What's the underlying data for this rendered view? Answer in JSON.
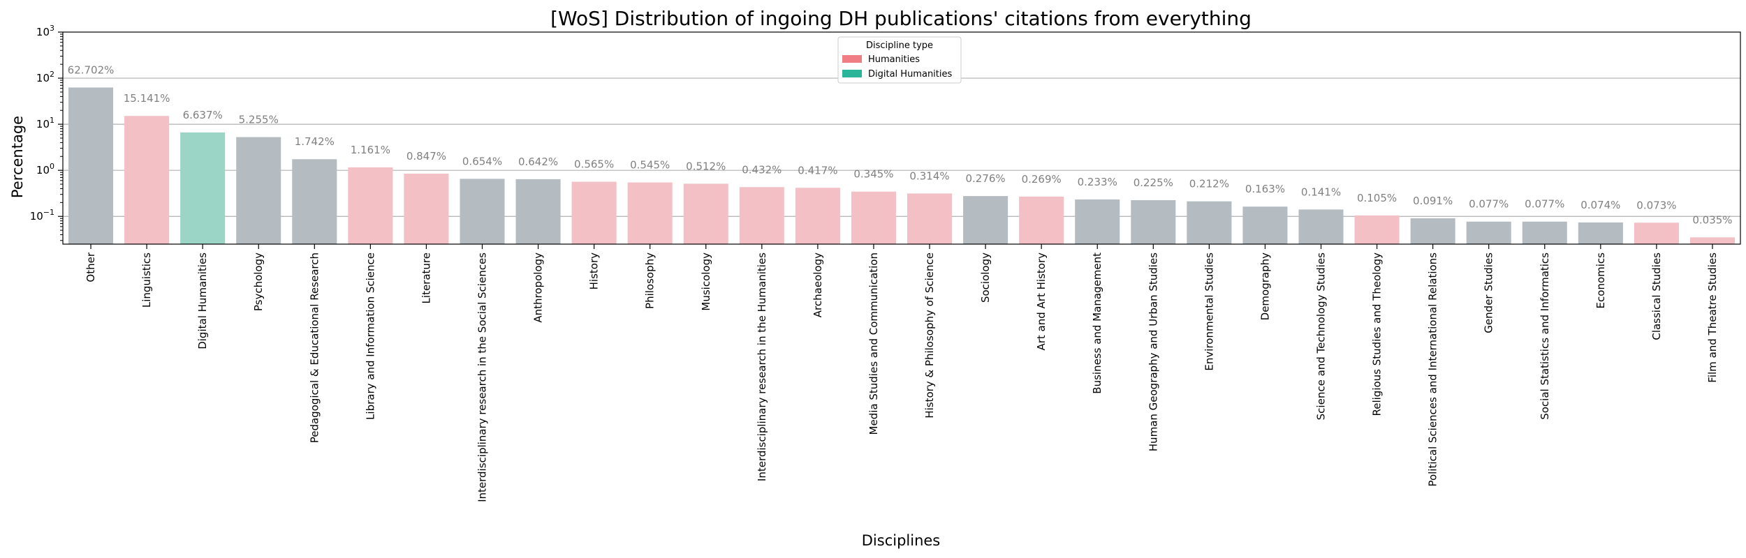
{
  "chart_data": {
    "type": "bar",
    "title": "[WoS] Distribution of ingoing DH publications' citations from everything",
    "xlabel": "Disciplines",
    "ylabel": "Percentage",
    "yscale": "log",
    "ylim": [
      0.025,
      1000
    ],
    "yticks": [
      {
        "value": 0.1,
        "base": "10",
        "exp": "−1"
      },
      {
        "value": 1,
        "base": "10",
        "exp": "0"
      },
      {
        "value": 10,
        "base": "10",
        "exp": "1"
      },
      {
        "value": 100,
        "base": "10",
        "exp": "2"
      },
      {
        "value": 1000,
        "base": "10",
        "exp": "3"
      }
    ],
    "grid": "horizontal",
    "legend": {
      "title": "Discipline type",
      "placement": "top-center",
      "entries": [
        {
          "label": "Humanities",
          "color": "#f07c84"
        },
        {
          "label": "Digital Humanities",
          "color": "#2ab59a"
        }
      ]
    },
    "colors": {
      "humanities": "#f2c0c5",
      "digital_humanities": "#9ad5c5",
      "other": "#b5bcc1"
    },
    "categories": [
      "Other",
      "Linguistics",
      "Digital Humanities",
      "Psychology",
      "Pedagogical & Educational Research",
      "Library and Information Science",
      "Literature",
      "Interdisciplinary research in the Social Sciences",
      "Anthropology",
      "History",
      "Philosophy",
      "Musicology",
      "Interdisciplinary research in the Humanities",
      "Archaeology",
      "Media Studies and Communication",
      "History & Philosophy of Science",
      "Sociology",
      "Art and Art History",
      "Business and Management",
      "Human Geography and Urban Studies",
      "Environmental Studies",
      "Demography",
      "Science and Technology Studies",
      "Religious Studies and Theology",
      "Political Sciences and International Relations",
      "Gender Studies",
      "Social Statistics and Informatics",
      "Economics",
      "Classical Studies",
      "Film and Theatre Studies"
    ],
    "values": [
      62.702,
      15.141,
      6.637,
      5.255,
      1.742,
      1.161,
      0.847,
      0.654,
      0.642,
      0.565,
      0.545,
      0.512,
      0.432,
      0.417,
      0.345,
      0.314,
      0.276,
      0.269,
      0.233,
      0.225,
      0.212,
      0.163,
      0.141,
      0.105,
      0.091,
      0.077,
      0.077,
      0.074,
      0.073,
      0.035
    ],
    "data_labels": [
      "62.702%",
      "15.141%",
      "6.637%",
      "5.255%",
      "1.742%",
      "1.161%",
      "0.847%",
      "0.654%",
      "0.642%",
      "0.565%",
      "0.545%",
      "0.512%",
      "0.432%",
      "0.417%",
      "0.345%",
      "0.314%",
      "0.276%",
      "0.269%",
      "0.233%",
      "0.225%",
      "0.212%",
      "0.163%",
      "0.141%",
      "0.105%",
      "0.091%",
      "0.077%",
      "0.077%",
      "0.074%",
      "0.073%",
      "0.035%"
    ],
    "types": [
      "other",
      "humanities",
      "digital_humanities",
      "other",
      "other",
      "humanities",
      "humanities",
      "other",
      "other",
      "humanities",
      "humanities",
      "humanities",
      "humanities",
      "humanities",
      "humanities",
      "humanities",
      "other",
      "humanities",
      "other",
      "other",
      "other",
      "other",
      "other",
      "humanities",
      "other",
      "other",
      "other",
      "other",
      "humanities",
      "humanities"
    ]
  }
}
